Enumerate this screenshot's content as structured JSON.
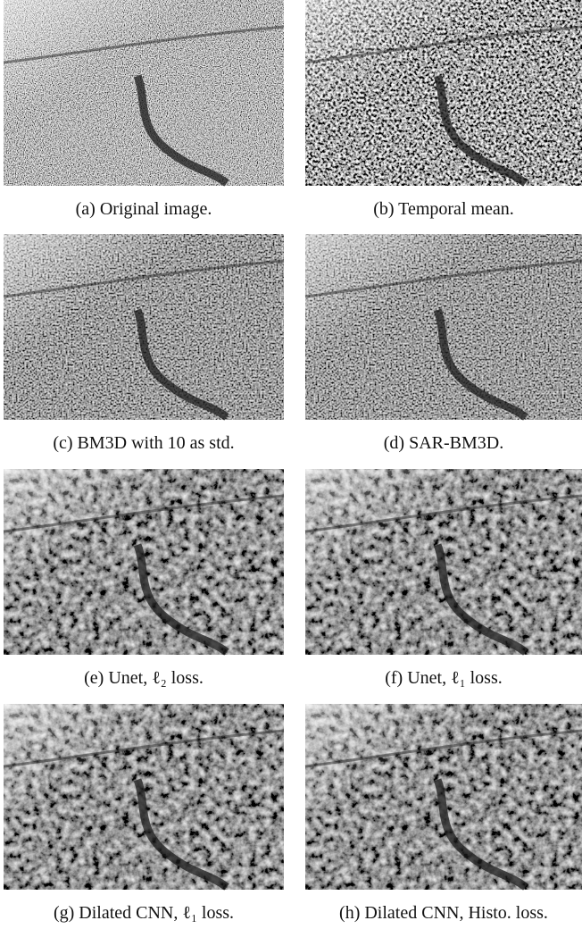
{
  "figures": [
    {
      "caption": "(a) Original image."
    },
    {
      "caption": "(b) Temporal mean."
    },
    {
      "caption": "(c) BM3D with 10 as std."
    },
    {
      "caption": "(d) SAR-BM3D."
    },
    {
      "caption": "(e) Unet, ℓ₂ loss."
    },
    {
      "caption": "(f) Unet, ℓ₁ loss."
    },
    {
      "caption": "(g) Dilated CNN, ℓ₁ loss."
    },
    {
      "caption": "(h) Dilated CNN, Histo. loss."
    }
  ]
}
